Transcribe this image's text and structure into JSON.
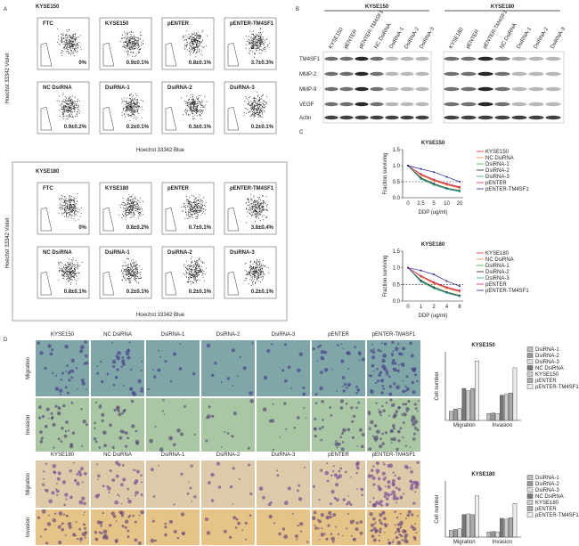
{
  "panel_labels": [
    "A",
    "B",
    "C",
    "D"
  ],
  "flow": {
    "y_label": "Hoechst 33342 Violet",
    "x_label": "Hoechst 33342 Blue",
    "blocks": [
      {
        "title": "KYSE150",
        "plots": [
          {
            "label": "FTC",
            "value": "0%"
          },
          {
            "label": "KYSE150",
            "value": "0.9±0.1%"
          },
          {
            "label": "pENTER",
            "value": "0.8±0.1%"
          },
          {
            "label": "pENTER-TM4SF1",
            "value": "3.7±0.3%"
          },
          {
            "label": "NC DsiRNA",
            "value": "0.9±0.2%"
          },
          {
            "label": "DsiRNA-1",
            "value": "0.2±0.1%"
          },
          {
            "label": "DsiRNA-2",
            "value": "0.3±0.1%"
          },
          {
            "label": "DsiRNA-3",
            "value": "0.2±0.1%"
          }
        ]
      },
      {
        "title": "KYSE180",
        "plots": [
          {
            "label": "FTC",
            "value": "0%"
          },
          {
            "label": "KYSE180",
            "value": "0.8±0.2%"
          },
          {
            "label": "pENTER",
            "value": "0.7±0.1%"
          },
          {
            "label": "pENTER-TM4SF1",
            "value": "3.8±0.4%"
          },
          {
            "label": "NC DsiRNA",
            "value": "0.8±0.1%"
          },
          {
            "label": "DsiRNA-1",
            "value": "0.2±0.1%"
          },
          {
            "label": "DsiRNA-2",
            "value": "0.2±0.1%"
          },
          {
            "label": "DsiRNA-3",
            "value": "0.2±0.1%"
          }
        ]
      }
    ]
  },
  "western": {
    "groups": [
      {
        "title": "KYSE150",
        "lanes": [
          "KYSE150",
          "pENTER",
          "pENTER-TM4SF1",
          "NC DsiRNA",
          "DsiRNA-1",
          "DsiRNA-2",
          "DsiRNA-3"
        ]
      },
      {
        "title": "KYSE180",
        "lanes": [
          "KYSE180",
          "pENTER",
          "pENTER-TM4SF1",
          "NC DsiRNA",
          "DsiRNA-1",
          "DsiRNA-2",
          "DsiRNA-3"
        ]
      }
    ],
    "rows": [
      "TM4SF1",
      "MMP-2",
      "MMP-9",
      "VEGF",
      "Actin"
    ]
  },
  "chart_data": [
    {
      "type": "line",
      "title": "KYSE150",
      "y_label": "Fraction surviving",
      "x_label": "DDP (ug/ml)",
      "categories": [
        "0",
        "2.5",
        "5",
        "10",
        "20"
      ],
      "ylim": [
        0,
        1.5
      ],
      "yticks": [
        {
          "value": 0,
          "label": "0.0"
        },
        {
          "value": 0.5,
          "label": "0.5"
        },
        {
          "value": 1,
          "label": "1.0"
        },
        {
          "value": 1.5,
          "label": "1.5"
        }
      ],
      "reference_line": 0.5,
      "series": [
        {
          "name": "KYSE150",
          "color": "#e02020",
          "values": [
            1,
            0.72,
            0.55,
            0.42,
            0.32
          ]
        },
        {
          "name": "NC DsiRNA",
          "color": "#f08020",
          "values": [
            1,
            0.7,
            0.53,
            0.4,
            0.3
          ]
        },
        {
          "name": "DsiRNA-1",
          "color": "#30b030",
          "values": [
            1,
            0.6,
            0.42,
            0.28,
            0.2
          ]
        },
        {
          "name": "DsiRNA-2",
          "color": "#202020",
          "values": [
            1,
            0.62,
            0.44,
            0.3,
            0.22
          ]
        },
        {
          "name": "DsiRNA-3",
          "color": "#20a0a0",
          "values": [
            1,
            0.58,
            0.4,
            0.27,
            0.19
          ]
        },
        {
          "name": "pENTER",
          "color": "#d02070",
          "values": [
            1,
            0.74,
            0.57,
            0.44,
            0.34
          ]
        },
        {
          "name": "pENTER-TM4SF1",
          "color": "#2020a0",
          "values": [
            1,
            0.9,
            0.8,
            0.65,
            0.5
          ]
        }
      ]
    },
    {
      "type": "line",
      "title": "KYSE180",
      "y_label": "Fraction surviving",
      "x_label": "DDP (ug/ml)",
      "categories": [
        "0",
        "1",
        "2",
        "4",
        "8"
      ],
      "ylim": [
        0,
        1.5
      ],
      "yticks": [
        {
          "value": 0,
          "label": "0.0"
        },
        {
          "value": 0.5,
          "label": "0.5"
        },
        {
          "value": 1,
          "label": "1.0"
        },
        {
          "value": 1.5,
          "label": "1.5"
        }
      ],
      "reference_line": 0.5,
      "series": [
        {
          "name": "KYSE180",
          "color": "#e02020",
          "values": [
            1,
            0.75,
            0.55,
            0.4,
            0.3
          ]
        },
        {
          "name": "NC DsiRNA",
          "color": "#f08020",
          "values": [
            1,
            0.73,
            0.53,
            0.38,
            0.28
          ]
        },
        {
          "name": "DsiRNA-1",
          "color": "#30b030",
          "values": [
            1,
            0.6,
            0.4,
            0.25,
            0.15
          ]
        },
        {
          "name": "DsiRNA-2",
          "color": "#202020",
          "values": [
            1,
            0.62,
            0.42,
            0.27,
            0.17
          ]
        },
        {
          "name": "DsiRNA-3",
          "color": "#20a0a0",
          "values": [
            1,
            0.58,
            0.38,
            0.24,
            0.14
          ]
        },
        {
          "name": "pENTER",
          "color": "#d02070",
          "values": [
            1,
            0.76,
            0.57,
            0.42,
            0.32
          ]
        },
        {
          "name": "pENTER-TM4SF1",
          "color": "#2020a0",
          "values": [
            1,
            0.92,
            0.8,
            0.6,
            0.45
          ]
        }
      ]
    },
    {
      "type": "bar",
      "title": "KYSE150",
      "y_label": "Cell number",
      "categories": [
        "Migration",
        "Invasion"
      ],
      "ylim": [
        0,
        150
      ],
      "series": [
        {
          "name": "DsiRNA-1",
          "color": "#bbbbbb",
          "values": [
            20,
            15
          ]
        },
        {
          "name": "DsiRNA-2",
          "color": "#999999",
          "values": [
            25,
            16
          ]
        },
        {
          "name": "DsiRNA-3",
          "color": "#dddddd",
          "values": [
            26,
            15
          ]
        },
        {
          "name": "NC DsiRNA",
          "color": "#777777",
          "values": [
            70,
            55
          ]
        },
        {
          "name": "KYSE150",
          "color": "#cccccc",
          "values": [
            65,
            57
          ]
        },
        {
          "name": "pENTER",
          "color": "#aaaaaa",
          "values": [
            70,
            60
          ]
        },
        {
          "name": "pENTER-TM4SF1",
          "color": "#eeeeee",
          "values": [
            130,
            115
          ]
        }
      ]
    },
    {
      "type": "bar",
      "title": "KYSE180",
      "y_label": "Cell number",
      "categories": [
        "Migration",
        "Invasion"
      ],
      "ylim": [
        0,
        150
      ],
      "series": [
        {
          "name": "DsiRNA-1",
          "color": "#bbbbbb",
          "values": [
            18,
            14
          ]
        },
        {
          "name": "DsiRNA-2",
          "color": "#999999",
          "values": [
            20,
            15
          ]
        },
        {
          "name": "DsiRNA-3",
          "color": "#dddddd",
          "values": [
            22,
            14
          ]
        },
        {
          "name": "NC DsiRNA",
          "color": "#777777",
          "values": [
            60,
            50
          ]
        },
        {
          "name": "KYSE180",
          "color": "#cccccc",
          "values": [
            62,
            48
          ]
        },
        {
          "name": "pENTER",
          "color": "#aaaaaa",
          "values": [
            60,
            52
          ]
        },
        {
          "name": "pENTER-TM4SF1",
          "color": "#eeeeee",
          "values": [
            110,
            90
          ]
        }
      ]
    }
  ],
  "invasion": {
    "blocks": [
      {
        "headers": [
          "KYSE150",
          "NC DsiRNA",
          "DsiRNA-1",
          "DsiRNA-2",
          "DsiRNA-3",
          "pENTER",
          "pENTER-TM4SF1"
        ],
        "rows": [
          "Migration",
          "Invasion"
        ]
      },
      {
        "headers": [
          "KYSE180",
          "NC DsiRNA",
          "DsiRNA-1",
          "DsiRNA-2",
          "DsiRNA-3",
          "pENTER",
          "pENTER-TM4SF1"
        ],
        "rows": [
          "Migration",
          "Invasion"
        ]
      }
    ]
  }
}
